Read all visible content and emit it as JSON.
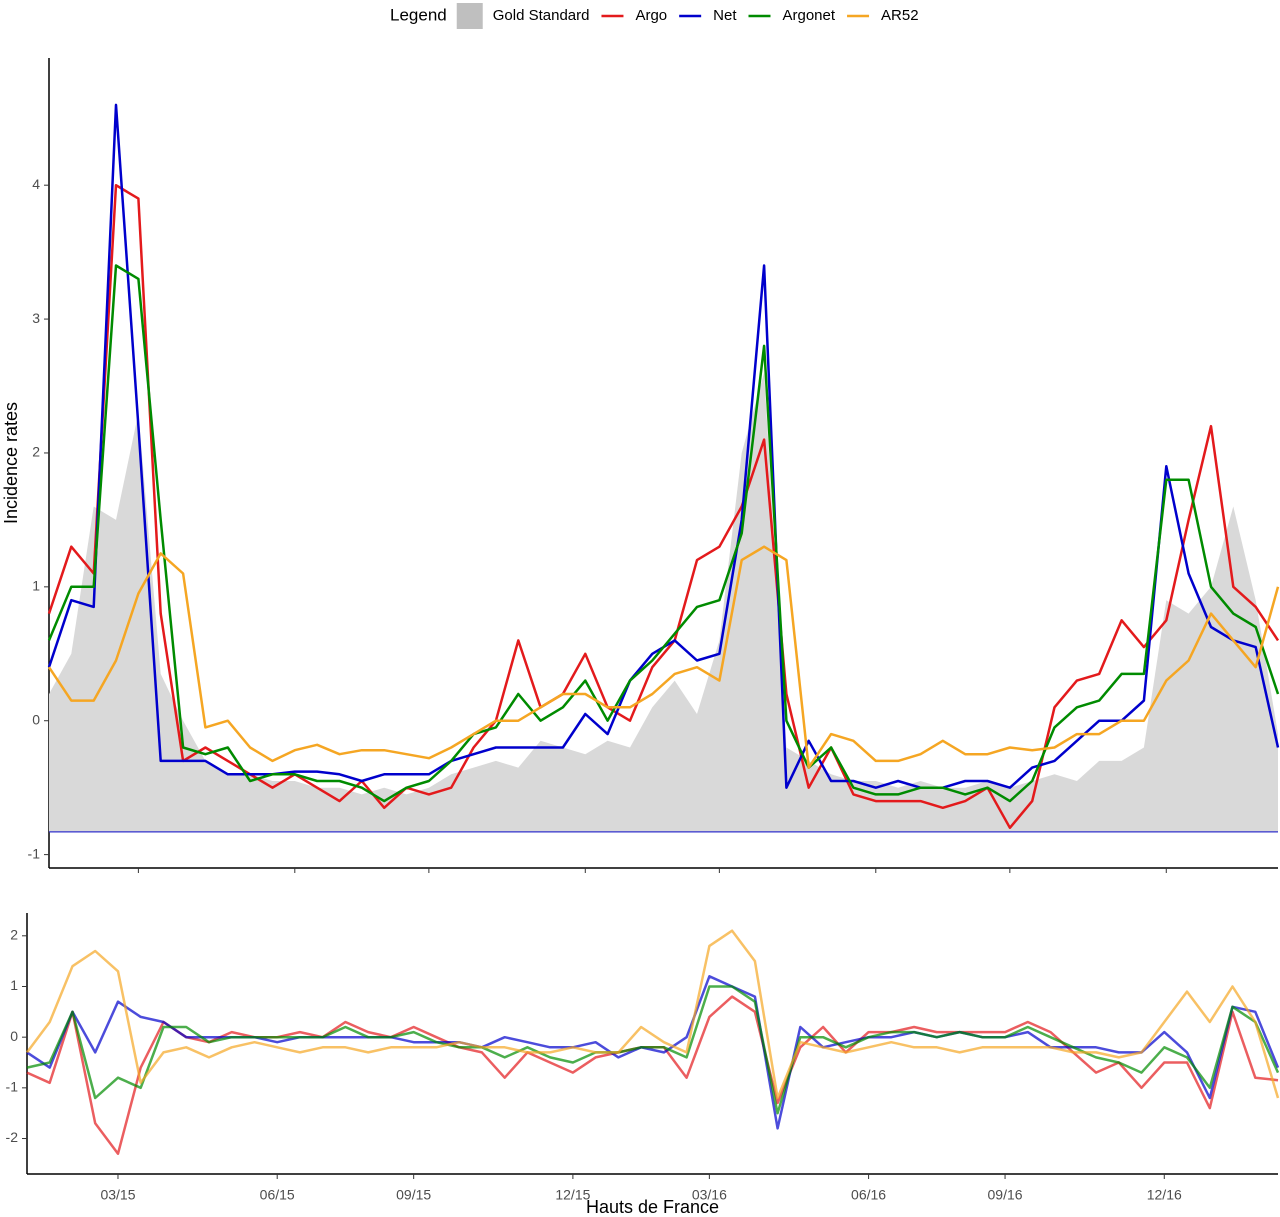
{
  "chart_data": [
    {
      "type": "line",
      "ylabel": "Incidence rates",
      "legend_title": "Legend",
      "legend": "top",
      "ylim": [
        -1.1,
        4.95
      ],
      "yticks": [
        -1,
        0,
        1,
        2,
        3,
        4
      ],
      "hline": {
        "value": -0.83,
        "color": "#3333cc"
      },
      "series": [
        {
          "name": "Gold Standard",
          "type": "area",
          "color": "#d9d9d9",
          "values": [
            0.2,
            0.5,
            1.6,
            1.5,
            2.3,
            0.35,
            0.0,
            -0.3,
            -0.4,
            -0.4,
            -0.45,
            -0.45,
            -0.5,
            -0.5,
            -0.55,
            -0.5,
            -0.55,
            -0.5,
            -0.4,
            -0.35,
            -0.3,
            -0.35,
            -0.15,
            -0.2,
            -0.25,
            -0.15,
            -0.2,
            0.1,
            0.3,
            0.05,
            0.6,
            2.0,
            2.6,
            -0.2,
            -0.3,
            -0.4,
            -0.45,
            -0.45,
            -0.5,
            -0.45,
            -0.5,
            -0.5,
            -0.45,
            -0.5,
            -0.45,
            -0.4,
            -0.45,
            -0.3,
            -0.3,
            -0.2,
            0.9,
            0.8,
            1.0,
            1.6,
            0.9,
            -0.1
          ]
        },
        {
          "name": "Argo",
          "color": "#e31a1c",
          "values": [
            0.8,
            1.3,
            1.1,
            4.0,
            3.9,
            0.8,
            -0.3,
            -0.2,
            -0.3,
            -0.4,
            -0.5,
            -0.4,
            -0.5,
            -0.6,
            -0.45,
            -0.65,
            -0.5,
            -0.55,
            -0.5,
            -0.2,
            0.0,
            0.6,
            0.1,
            0.2,
            0.5,
            0.1,
            0.0,
            0.4,
            0.6,
            1.2,
            1.3,
            1.6,
            2.1,
            0.2,
            -0.5,
            -0.2,
            -0.55,
            -0.6,
            -0.6,
            -0.6,
            -0.65,
            -0.6,
            -0.5,
            -0.8,
            -0.6,
            0.1,
            0.3,
            0.35,
            0.75,
            0.55,
            0.75,
            1.5,
            2.2,
            1.0,
            0.85,
            0.6
          ]
        },
        {
          "name": "Net",
          "color": "#0000cc",
          "values": [
            0.4,
            0.9,
            0.85,
            4.6,
            2.2,
            -0.3,
            -0.3,
            -0.3,
            -0.4,
            -0.4,
            -0.4,
            -0.38,
            -0.38,
            -0.4,
            -0.45,
            -0.4,
            -0.4,
            -0.4,
            -0.3,
            -0.25,
            -0.2,
            -0.2,
            -0.2,
            -0.2,
            0.05,
            -0.1,
            0.3,
            0.5,
            0.6,
            0.45,
            0.5,
            1.5,
            3.4,
            -0.5,
            -0.15,
            -0.45,
            -0.45,
            -0.5,
            -0.45,
            -0.5,
            -0.5,
            -0.45,
            -0.45,
            -0.5,
            -0.35,
            -0.3,
            -0.15,
            0.0,
            0.0,
            0.15,
            1.9,
            1.1,
            0.7,
            0.6,
            0.55,
            -0.2
          ]
        },
        {
          "name": "Argonet",
          "color": "#008b00",
          "values": [
            0.6,
            1.0,
            1.0,
            3.4,
            3.3,
            1.5,
            -0.2,
            -0.25,
            -0.2,
            -0.45,
            -0.4,
            -0.4,
            -0.45,
            -0.45,
            -0.5,
            -0.6,
            -0.5,
            -0.45,
            -0.3,
            -0.1,
            -0.05,
            0.2,
            0.0,
            0.1,
            0.3,
            0.0,
            0.3,
            0.45,
            0.65,
            0.85,
            0.9,
            1.4,
            2.8,
            0.0,
            -0.35,
            -0.2,
            -0.5,
            -0.55,
            -0.55,
            -0.5,
            -0.5,
            -0.55,
            -0.5,
            -0.6,
            -0.45,
            -0.05,
            0.1,
            0.15,
            0.35,
            0.35,
            1.8,
            1.8,
            1.0,
            0.8,
            0.7,
            0.2
          ]
        },
        {
          "name": "AR52",
          "color": "#f5a623",
          "values": [
            0.4,
            0.15,
            0.15,
            0.45,
            0.95,
            1.25,
            1.1,
            -0.05,
            0.0,
            -0.2,
            -0.3,
            -0.22,
            -0.18,
            -0.25,
            -0.22,
            -0.22,
            -0.25,
            -0.28,
            -0.2,
            -0.1,
            0.0,
            0.0,
            0.1,
            0.2,
            0.2,
            0.1,
            0.1,
            0.2,
            0.35,
            0.4,
            0.3,
            1.2,
            1.3,
            1.2,
            -0.35,
            -0.1,
            -0.15,
            -0.3,
            -0.3,
            -0.25,
            -0.15,
            -0.25,
            -0.25,
            -0.2,
            -0.22,
            -0.2,
            -0.1,
            -0.1,
            0.0,
            0.0,
            0.3,
            0.45,
            0.8,
            0.6,
            0.4,
            1.0
          ]
        }
      ]
    },
    {
      "type": "line",
      "xlabel": "Hauts de France",
      "categories": [
        null,
        null,
        null,
        null,
        "03/15",
        null,
        null,
        null,
        null,
        null,
        null,
        "06/15",
        null,
        null,
        null,
        null,
        null,
        "09/15",
        null,
        null,
        null,
        null,
        null,
        null,
        "12/15",
        null,
        null,
        null,
        null,
        null,
        "03/16",
        null,
        null,
        null,
        null,
        null,
        null,
        "06/16",
        null,
        null,
        null,
        null,
        null,
        "09/16",
        null,
        null,
        null,
        null,
        null,
        null,
        "12/16",
        null,
        null,
        null,
        null,
        null
      ],
      "ylim": [
        -2.7,
        2.45
      ],
      "yticks": [
        -2,
        -1,
        0,
        1,
        2
      ],
      "opacity": 0.7,
      "series": [
        {
          "name": "Argo",
          "color": "#e31a1c",
          "values": [
            -0.7,
            -0.9,
            0.5,
            -1.7,
            -2.3,
            -0.6,
            0.3,
            0.0,
            -0.1,
            0.1,
            0.0,
            0.0,
            0.1,
            0.0,
            0.3,
            0.1,
            0.0,
            0.2,
            0.0,
            -0.2,
            -0.3,
            -0.8,
            -0.3,
            -0.5,
            -0.7,
            -0.4,
            -0.3,
            -0.2,
            -0.2,
            -0.8,
            0.4,
            0.8,
            0.5,
            -1.3,
            -0.2,
            0.2,
            -0.3,
            0.1,
            0.1,
            0.2,
            0.1,
            0.1,
            0.1,
            0.1,
            0.3,
            0.1,
            -0.3,
            -0.7,
            -0.5,
            -1.0,
            -0.5,
            -0.5,
            -1.4,
            0.5,
            -0.8,
            -0.85
          ]
        },
        {
          "name": "Net",
          "color": "#0000cc",
          "values": [
            -0.3,
            -0.6,
            0.5,
            -0.3,
            0.7,
            0.4,
            0.3,
            0.0,
            0.0,
            0.0,
            0.0,
            -0.1,
            0.0,
            0.0,
            0.0,
            0.0,
            0.0,
            -0.1,
            -0.1,
            -0.1,
            -0.2,
            0.0,
            -0.1,
            -0.2,
            -0.2,
            -0.1,
            -0.4,
            -0.2,
            -0.3,
            0.0,
            1.2,
            1.0,
            0.8,
            -1.8,
            0.2,
            -0.2,
            -0.1,
            0.0,
            0.0,
            0.1,
            0.0,
            0.1,
            0.0,
            0.0,
            0.1,
            -0.2,
            -0.2,
            -0.2,
            -0.3,
            -0.3,
            0.1,
            -0.3,
            -1.2,
            0.6,
            0.5,
            -0.6
          ]
        },
        {
          "name": "Argonet",
          "color": "#008b00",
          "values": [
            -0.6,
            -0.5,
            0.5,
            -1.2,
            -0.8,
            -1.0,
            0.2,
            0.2,
            -0.1,
            0.0,
            0.0,
            0.0,
            0.0,
            0.0,
            0.2,
            0.0,
            0.0,
            0.1,
            -0.1,
            -0.2,
            -0.2,
            -0.4,
            -0.2,
            -0.4,
            -0.5,
            -0.3,
            -0.3,
            -0.2,
            -0.2,
            -0.4,
            1.0,
            1.0,
            0.7,
            -1.5,
            0.0,
            0.0,
            -0.2,
            0.0,
            0.1,
            0.1,
            0.0,
            0.1,
            0.0,
            0.0,
            0.2,
            0.0,
            -0.2,
            -0.4,
            -0.5,
            -0.7,
            -0.2,
            -0.4,
            -1.0,
            0.6,
            0.3,
            -0.7
          ]
        },
        {
          "name": "AR52",
          "color": "#f5a623",
          "values": [
            -0.3,
            0.3,
            1.4,
            1.7,
            1.3,
            -0.9,
            -0.3,
            -0.2,
            -0.4,
            -0.2,
            -0.1,
            -0.2,
            -0.3,
            -0.2,
            -0.2,
            -0.3,
            -0.2,
            -0.2,
            -0.2,
            -0.1,
            -0.2,
            -0.2,
            -0.3,
            -0.3,
            -0.2,
            -0.3,
            -0.3,
            0.2,
            -0.1,
            -0.3,
            1.8,
            2.1,
            1.5,
            -1.2,
            -0.1,
            -0.2,
            -0.3,
            -0.2,
            -0.1,
            -0.2,
            -0.2,
            -0.3,
            -0.2,
            -0.2,
            -0.2,
            -0.2,
            -0.3,
            -0.3,
            -0.4,
            -0.3,
            0.3,
            0.9,
            0.3,
            1.0,
            0.3,
            -1.2
          ]
        }
      ]
    }
  ]
}
